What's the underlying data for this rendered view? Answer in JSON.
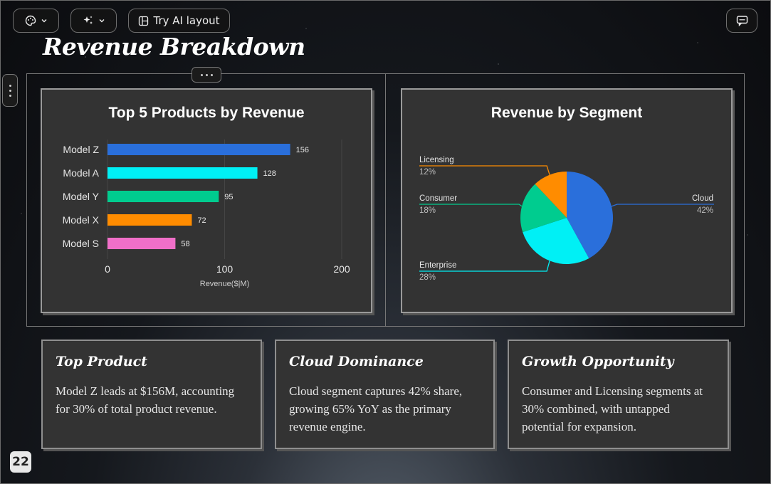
{
  "toolbar": {
    "theme_icon": "palette-icon",
    "ai_icon": "sparkles-icon",
    "try_ai_label": "Try AI layout",
    "comments_icon": "chat-icon"
  },
  "slide": {
    "title": "Revenue Breakdown",
    "page_number": "22"
  },
  "bar_chart": {
    "title": "Top 5 Products by Revenue",
    "xlabel": "Revenue($|M)",
    "ticks": [
      "0",
      "100",
      "200"
    ]
  },
  "pie_chart": {
    "title": "Revenue by Segment"
  },
  "chart_data": [
    {
      "type": "bar",
      "orientation": "horizontal",
      "title": "Top 5 Products by Revenue",
      "xlabel": "Revenue($|M)",
      "xlim": [
        0,
        200
      ],
      "categories": [
        "Model Z",
        "Model A",
        "Model Y",
        "Model X",
        "Model S"
      ],
      "values": [
        156,
        128,
        95,
        72,
        58
      ],
      "colors": [
        "#2a6fdb",
        "#00f0f5",
        "#00cc8f",
        "#ff8c00",
        "#f06fc8"
      ],
      "data_labels": [
        "156",
        "128",
        "95",
        "72",
        "58"
      ],
      "grid": true
    },
    {
      "type": "pie",
      "title": "Revenue by Segment",
      "slices": [
        {
          "label": "Cloud",
          "pct": "42%",
          "value": 42,
          "color": "#2a6fdb"
        },
        {
          "label": "Enterprise",
          "pct": "28%",
          "value": 28,
          "color": "#00f0f5"
        },
        {
          "label": "Consumer",
          "pct": "18%",
          "value": 18,
          "color": "#00cc8f"
        },
        {
          "label": "Licensing",
          "pct": "12%",
          "value": 12,
          "color": "#ff8c00"
        }
      ]
    }
  ],
  "insights": [
    {
      "heading": "Top Product",
      "body": "Model Z leads at $156M, accounting for 30% of total product revenue."
    },
    {
      "heading": "Cloud Dominance",
      "body": "Cloud segment captures 42% share, growing 65% YoY as the primary revenue engine."
    },
    {
      "heading": "Growth Opportunity",
      "body": "Consumer and Licensing segments at 30% combined, with untapped potential for expansion."
    }
  ]
}
